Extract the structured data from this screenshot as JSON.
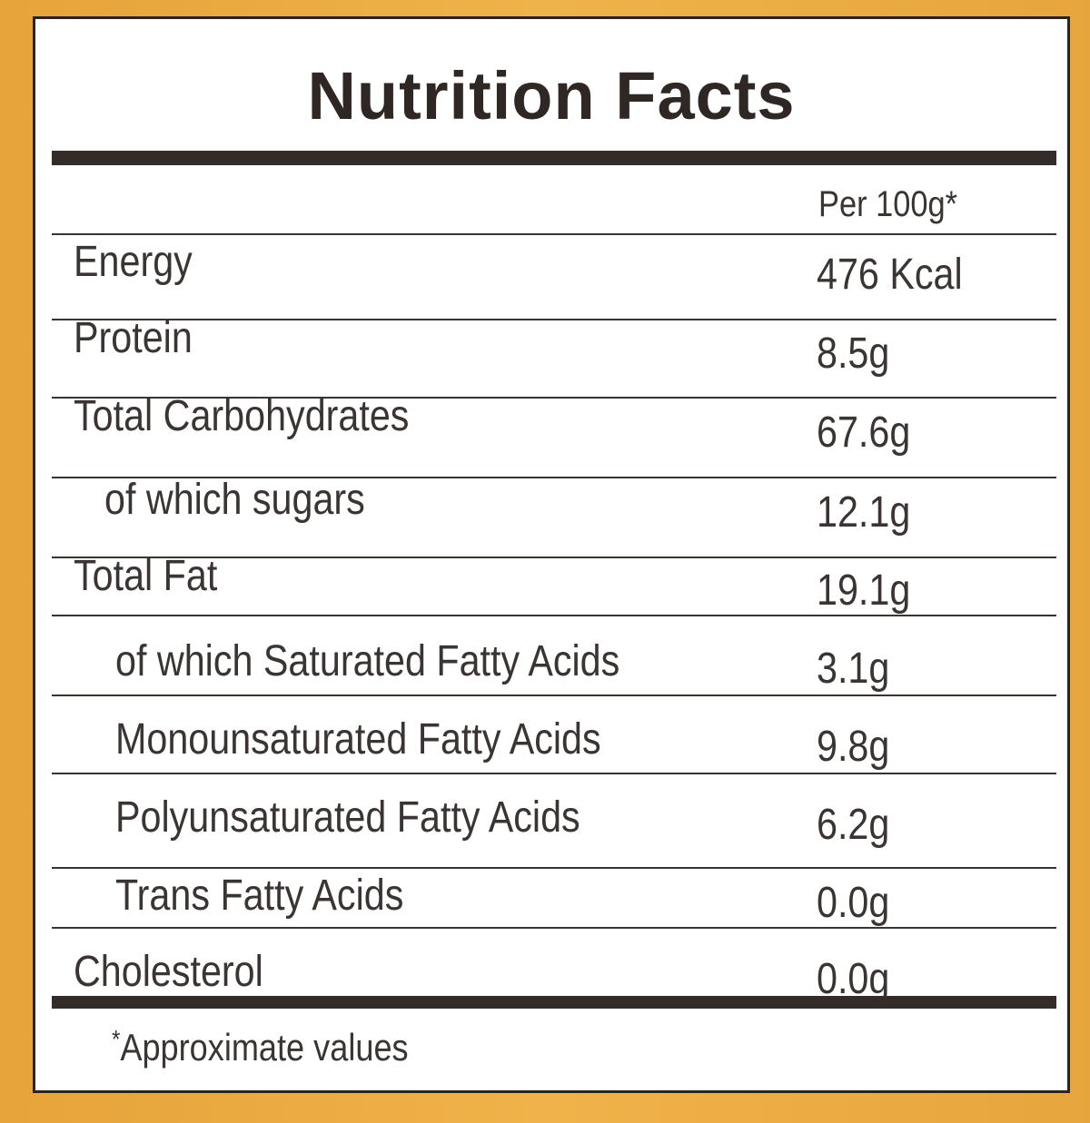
{
  "title": "Nutrition Facts",
  "column_header": "Per 100g*",
  "rows": [
    {
      "label": "Energy",
      "value": "476 Kcal"
    },
    {
      "label": "Protein",
      "value": "8.5g"
    },
    {
      "label": "Total Carbohydrates",
      "value": "67.6g"
    },
    {
      "label": "of which sugars",
      "value": "12.1g"
    },
    {
      "label": "Total Fat",
      "value": "19.1g"
    },
    {
      "label": "of which Saturated Fatty Acids",
      "value": "3.1g"
    },
    {
      "label": "Monounsaturated Fatty Acids",
      "value": "9.8g"
    },
    {
      "label": "Polyunsaturated Fatty Acids",
      "value": "6.2g"
    },
    {
      "label": "Trans Fatty Acids",
      "value": "0.0g"
    },
    {
      "label": "Cholesterol",
      "value": "0.0g"
    }
  ],
  "footnote": {
    "marker": "*",
    "text": "Approximate values"
  },
  "colors": {
    "background": "#eba941",
    "panel": "#ffffff",
    "ink": "#2e2723"
  }
}
